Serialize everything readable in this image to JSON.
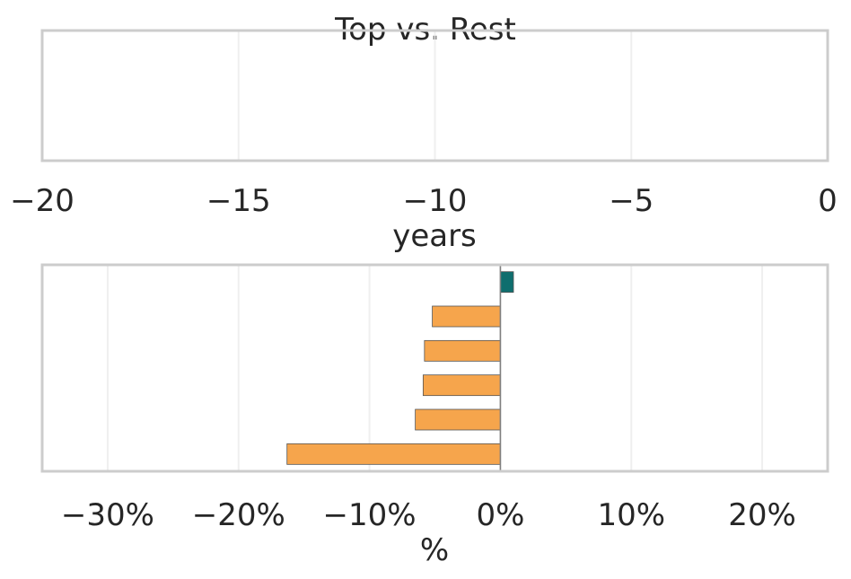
{
  "figure": {
    "title": "Top vs. Rest"
  },
  "chart_data": [
    {
      "type": "bar",
      "orientation": "horizontal",
      "xlabel": "years",
      "xlim": [
        -20,
        0
      ],
      "xticks": [
        -20,
        -15,
        -10,
        -5,
        0
      ],
      "xtick_labels": [
        "−20",
        "−15",
        "−10",
        "−5",
        "0"
      ],
      "grid": true,
      "values": []
    },
    {
      "type": "bar",
      "orientation": "horizontal",
      "xlabel": "%",
      "xlim": [
        -35,
        25
      ],
      "xticks": [
        -30,
        -20,
        -10,
        0,
        10,
        20
      ],
      "xtick_labels": [
        "−30%",
        "−20%",
        "−10%",
        "0%",
        "10%",
        "20%"
      ],
      "grid": true,
      "zero_line": true,
      "values": [
        1.0,
        -5.2,
        -5.8,
        -5.9,
        -6.5,
        -16.3
      ],
      "colors": [
        "#0f6e6e",
        "#f6a54c",
        "#f6a54c",
        "#f6a54c",
        "#f6a54c",
        "#f6a54c"
      ]
    }
  ]
}
